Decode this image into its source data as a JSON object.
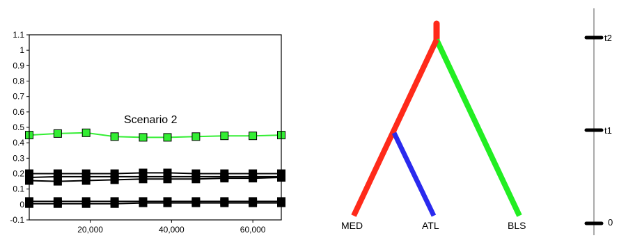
{
  "chart_data": {
    "type": "line",
    "title": "",
    "xlabel": "",
    "ylabel": "",
    "xlim": [
      5000,
      67000
    ],
    "ylim": [
      -0.1,
      1.1
    ],
    "yticks": [
      "1.1",
      "1",
      "0.9",
      "0.8",
      "0.7",
      "0.6",
      "0.5",
      "0.4",
      "0.3",
      "0.2",
      "0.1",
      "0",
      "-0.1"
    ],
    "yticks_values": [
      1.1,
      1.0,
      0.9,
      0.8,
      0.7,
      0.6,
      0.5,
      0.4,
      0.3,
      0.2,
      0.1,
      0,
      -0.1
    ],
    "xticks": [
      "20,000",
      "40,000",
      "60,000"
    ],
    "xticks_values": [
      20000,
      40000,
      60000
    ],
    "annotation": "Scenario 2",
    "x": [
      5000,
      12000,
      19000,
      26000,
      33000,
      39000,
      46000,
      53000,
      60000,
      67000
    ],
    "series": [
      {
        "color": "#33ee33",
        "values": [
          0.45,
          0.46,
          0.465,
          0.44,
          0.435,
          0.435,
          0.44,
          0.445,
          0.445,
          0.45
        ]
      },
      {
        "color": "#000000",
        "values": [
          0.2,
          0.2,
          0.2,
          0.2,
          0.205,
          0.205,
          0.2,
          0.2,
          0.2,
          0.2
        ]
      },
      {
        "color": "#000000",
        "values": [
          0.175,
          0.18,
          0.18,
          0.18,
          0.18,
          0.18,
          0.18,
          0.18,
          0.18,
          0.18
        ]
      },
      {
        "color": "#000000",
        "values": [
          0.155,
          0.15,
          0.155,
          0.16,
          0.165,
          0.165,
          0.165,
          0.17,
          0.17,
          0.175
        ]
      },
      {
        "color": "#000000",
        "values": [
          0.02,
          0.02,
          0.02,
          0.02,
          0.02,
          0.02,
          0.02,
          0.02,
          0.02,
          0.02
        ]
      },
      {
        "color": "#000000",
        "values": [
          0.005,
          0.005,
          0.005,
          0.005,
          0.01,
          0.01,
          0.01,
          0.01,
          0.01,
          0.01
        ]
      }
    ]
  },
  "tree": {
    "leaves": [
      "MED",
      "ATL",
      "BLS"
    ],
    "times": [
      "t2",
      "t1",
      "0"
    ],
    "branch_colors": {
      "med": "#ff2a1a",
      "atl": "#2a2aee",
      "bls": "#22ee22",
      "axis": "#aaaaaa",
      "tick": "#000000"
    }
  }
}
